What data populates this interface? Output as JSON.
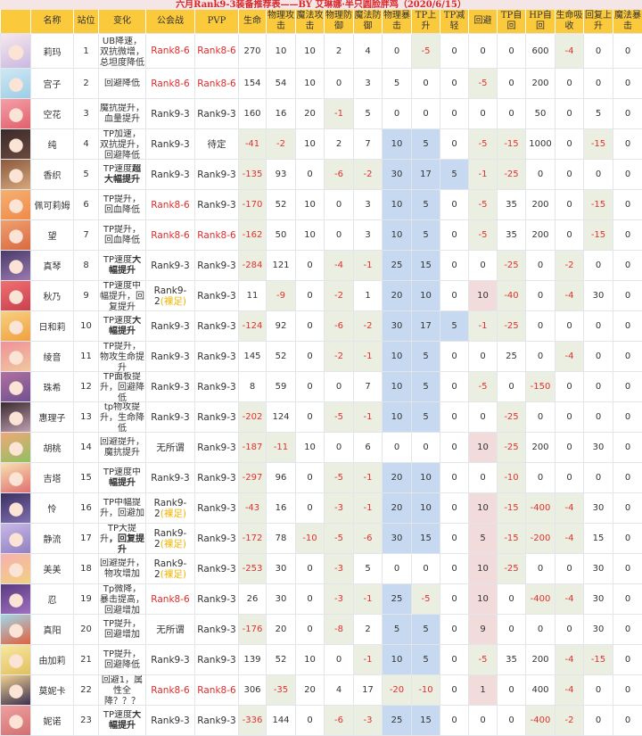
{
  "title": "六月Rank9-3装备推荐表——BY 艾琳娜·半只圆脸胖鸡（2020/6/15）",
  "headers": [
    "名称",
    "站位",
    "变化",
    "公会战",
    "PVP",
    "生命",
    "物理攻击",
    "魔法攻击",
    "物理防御",
    "魔法防御",
    "物理暴击",
    "TP上升",
    "TP减轻",
    "回避",
    "TP自回",
    "HP自回",
    "生命吸收",
    "回复上升",
    "魔法暴击"
  ],
  "colors": {
    "header_bg": "#fbc93c",
    "negative_bg": "#ebefe1",
    "negative_text": "#e0312f",
    "highlight_blue": "#c6d9f0",
    "highlight_pink": "#f2dcdb",
    "rank_red": "#e02b2b",
    "note_yellow": "#f0b400"
  },
  "rows": [
    {
      "name": "莉玛",
      "pos": "1",
      "change": "UB降速，双抗微增，总坦度降低",
      "change_bold": "",
      "guild": {
        "text": "Rank8-6",
        "red": true
      },
      "pvp": {
        "text": "Rank8-6",
        "red": true
      },
      "stats": [
        270,
        10,
        10,
        2,
        4,
        0,
        -5,
        0,
        0,
        0,
        600,
        -4,
        0,
        0
      ]
    },
    {
      "name": "宫子",
      "pos": "2",
      "change": "回避降低",
      "change_bold": "",
      "guild": {
        "text": "Rank8-6",
        "red": true
      },
      "pvp": {
        "text": "Rank8-6",
        "red": true
      },
      "stats": [
        154,
        54,
        10,
        0,
        3,
        5,
        0,
        0,
        -5,
        0,
        200,
        0,
        0,
        0
      ]
    },
    {
      "name": "空花",
      "pos": "3",
      "change": "魔抗提升，血量提升",
      "change_bold": "",
      "guild": {
        "text": "Rank9-3"
      },
      "pvp": {
        "text": "Rank9-3"
      },
      "stats": [
        160,
        16,
        20,
        -1,
        5,
        0,
        0,
        0,
        0,
        0,
        50,
        0,
        5,
        0
      ]
    },
    {
      "name": "纯",
      "pos": "4",
      "change": "TP加速，双抗提升，回避降低",
      "change_bold": "",
      "guild": {
        "text": "Rank9-3"
      },
      "pvp": {
        "text": "待定"
      },
      "stats": [
        -41,
        -2,
        10,
        2,
        7,
        10,
        5,
        0,
        -5,
        -15,
        1000,
        0,
        -15,
        0
      ]
    },
    {
      "name": "香织",
      "pos": "5",
      "change": "TP速度",
      "change_bold": "超大幅提升",
      "guild": {
        "text": "Rank9-3"
      },
      "pvp": {
        "text": "Rank9-3"
      },
      "stats": [
        -135,
        93,
        0,
        -6,
        -2,
        30,
        17,
        5,
        -1,
        -25,
        0,
        0,
        0,
        0
      ]
    },
    {
      "name": "佩可莉姆",
      "pos": "6",
      "change": "TP提升，回血降低",
      "change_bold": "",
      "guild": {
        "text": "Rank8-6",
        "red": true
      },
      "pvp": {
        "text": "Rank9-3"
      },
      "stats": [
        -170,
        52,
        10,
        0,
        3,
        10,
        5,
        0,
        -5,
        35,
        200,
        0,
        -15,
        0
      ]
    },
    {
      "name": "望",
      "pos": "7",
      "change": "TP提升，回血降低",
      "change_bold": "",
      "guild": {
        "text": "Rank8-6",
        "red": true
      },
      "pvp": {
        "text": "Rank8-6",
        "red": true
      },
      "stats": [
        -162,
        50,
        10,
        0,
        3,
        10,
        5,
        0,
        -5,
        35,
        200,
        0,
        -15,
        0
      ]
    },
    {
      "name": "真琴",
      "pos": "8",
      "change": "TP速度",
      "change_bold": "大幅提升",
      "guild": {
        "text": "Rank9-3"
      },
      "pvp": {
        "text": "Rank9-3"
      },
      "stats": [
        -284,
        121,
        0,
        -4,
        -1,
        25,
        15,
        0,
        0,
        -25,
        0,
        -2,
        0,
        0
      ]
    },
    {
      "name": "秋乃",
      "pos": "9",
      "change": "TP速度中幅提升，回复提升",
      "change_bold": "",
      "guild": {
        "text": "Rank9-2",
        "note": "(裸足)"
      },
      "pvp": {
        "text": "Rank9-3"
      },
      "stats": [
        11,
        -9,
        0,
        -2,
        1,
        20,
        10,
        0,
        10,
        -40,
        0,
        -4,
        30,
        0
      ]
    },
    {
      "name": "日和莉",
      "pos": "10",
      "change": "TP速度",
      "change_bold": "大幅提升",
      "guild": {
        "text": "Rank9-3"
      },
      "pvp": {
        "text": "Rank9-3"
      },
      "stats": [
        -124,
        92,
        0,
        -6,
        -2,
        30,
        17,
        5,
        -1,
        -25,
        0,
        0,
        0,
        0
      ]
    },
    {
      "name": "绫音",
      "pos": "11",
      "change": "TP提升，物攻生命提升",
      "change_bold": "",
      "guild": {
        "text": "Rank9-3"
      },
      "pvp": {
        "text": "Rank9-3"
      },
      "stats": [
        145,
        52,
        0,
        -2,
        -1,
        10,
        5,
        0,
        0,
        25,
        0,
        -4,
        0,
        0
      ]
    },
    {
      "name": "珠希",
      "pos": "12",
      "change": "TP面板提升，回避降低",
      "change_bold": "",
      "guild": {
        "text": "Rank9-3"
      },
      "pvp": {
        "text": "Rank9-3"
      },
      "stats": [
        8,
        59,
        0,
        0,
        7,
        10,
        5,
        0,
        -5,
        0,
        -150,
        0,
        0,
        0
      ]
    },
    {
      "name": "惠理子",
      "pos": "13",
      "change": "tp物攻提升，生命降低",
      "change_bold": "",
      "guild": {
        "text": "Rank9-3"
      },
      "pvp": {
        "text": "Rank9-3"
      },
      "stats": [
        -202,
        124,
        0,
        -5,
        -1,
        10,
        5,
        0,
        0,
        -25,
        0,
        0,
        0,
        0
      ]
    },
    {
      "name": "胡桃",
      "pos": "14",
      "change": "回避提升，魔抗提升",
      "change_bold": "",
      "guild": {
        "text": "无所谓"
      },
      "pvp": {
        "text": "Rank9-3"
      },
      "stats": [
        -187,
        -11,
        10,
        0,
        6,
        0,
        0,
        0,
        10,
        -25,
        200,
        0,
        30,
        0
      ]
    },
    {
      "name": "吉塔",
      "pos": "15",
      "change": "TP速度中",
      "change_bold": "幅提升",
      "guild": {
        "text": "Rank9-3"
      },
      "pvp": {
        "text": "Rank9-3"
      },
      "stats": [
        -297,
        96,
        0,
        -5,
        -1,
        20,
        10,
        0,
        0,
        -10,
        0,
        0,
        0,
        0
      ]
    },
    {
      "name": "怜",
      "pos": "16",
      "change": "TP中幅提升，回避加",
      "change_bold": "",
      "guild": {
        "text": "Rank9-2",
        "note": "(裸足)"
      },
      "pvp": {
        "text": "Rank9-3"
      },
      "stats": [
        -43,
        16,
        0,
        -3,
        -1,
        20,
        10,
        0,
        10,
        -15,
        -400,
        -4,
        30,
        0
      ]
    },
    {
      "name": "静流",
      "pos": "17",
      "change": "TP大提升",
      "change_bold": "，回复提升",
      "guild": {
        "text": "Rank9-2",
        "note": "(裸足)"
      },
      "pvp": {
        "text": "Rank9-3"
      },
      "stats": [
        -172,
        78,
        -10,
        -5,
        -6,
        30,
        15,
        0,
        5,
        -15,
        -200,
        -4,
        15,
        0
      ]
    },
    {
      "name": "美美",
      "pos": "18",
      "change": "回避提升，物攻增加",
      "change_bold": "",
      "guild": {
        "text": "Rank9-2",
        "note": "(裸足)"
      },
      "pvp": {
        "text": "Rank9-3"
      },
      "stats": [
        -253,
        30,
        0,
        -3,
        5,
        0,
        0,
        0,
        10,
        -25,
        0,
        0,
        30,
        0
      ]
    },
    {
      "name": "忍",
      "pos": "19",
      "change": "Tp微降，暴击提高，回避增加",
      "change_bold": "",
      "guild": {
        "text": "Rank8-6",
        "red": true
      },
      "pvp": {
        "text": "Rank9-3"
      },
      "stats": [
        26,
        30,
        0,
        -3,
        -1,
        25,
        -5,
        0,
        10,
        0,
        -400,
        -4,
        30,
        0
      ]
    },
    {
      "name": "真阳",
      "pos": "20",
      "change": "TP提升，回避增加",
      "change_bold": "",
      "guild": {
        "text": "无所谓"
      },
      "pvp": {
        "text": "Rank9-3"
      },
      "stats": [
        -176,
        20,
        0,
        -8,
        2,
        5,
        5,
        0,
        9,
        0,
        0,
        0,
        30,
        0
      ]
    },
    {
      "name": "由加莉",
      "pos": "21",
      "change": "TP提升，回避降低",
      "change_bold": "",
      "guild": {
        "text": "Rank9-3"
      },
      "pvp": {
        "text": "Rank9-3"
      },
      "stats": [
        139,
        52,
        10,
        0,
        -1,
        10,
        5,
        0,
        -5,
        35,
        200,
        -4,
        -15,
        0
      ]
    },
    {
      "name": "莫妮卡",
      "pos": "22",
      "change": "回避1，属性全降？？？",
      "change_bold": "",
      "guild": {
        "text": "Rank8-6",
        "red": true
      },
      "pvp": {
        "text": "Rank8-6",
        "red": true
      },
      "stats": [
        306,
        -35,
        20,
        4,
        17,
        -20,
        -10,
        0,
        1,
        0,
        400,
        -4,
        0,
        0
      ]
    },
    {
      "name": "妮诺",
      "pos": "23",
      "change": "TP速度",
      "change_bold": "大幅提升",
      "guild": {
        "text": "Rank9-3"
      },
      "pvp": {
        "text": "Rank9-3"
      },
      "stats": [
        -336,
        144,
        0,
        -6,
        -3,
        25,
        15,
        0,
        0,
        0,
        -400,
        -2,
        0,
        0
      ]
    }
  ]
}
